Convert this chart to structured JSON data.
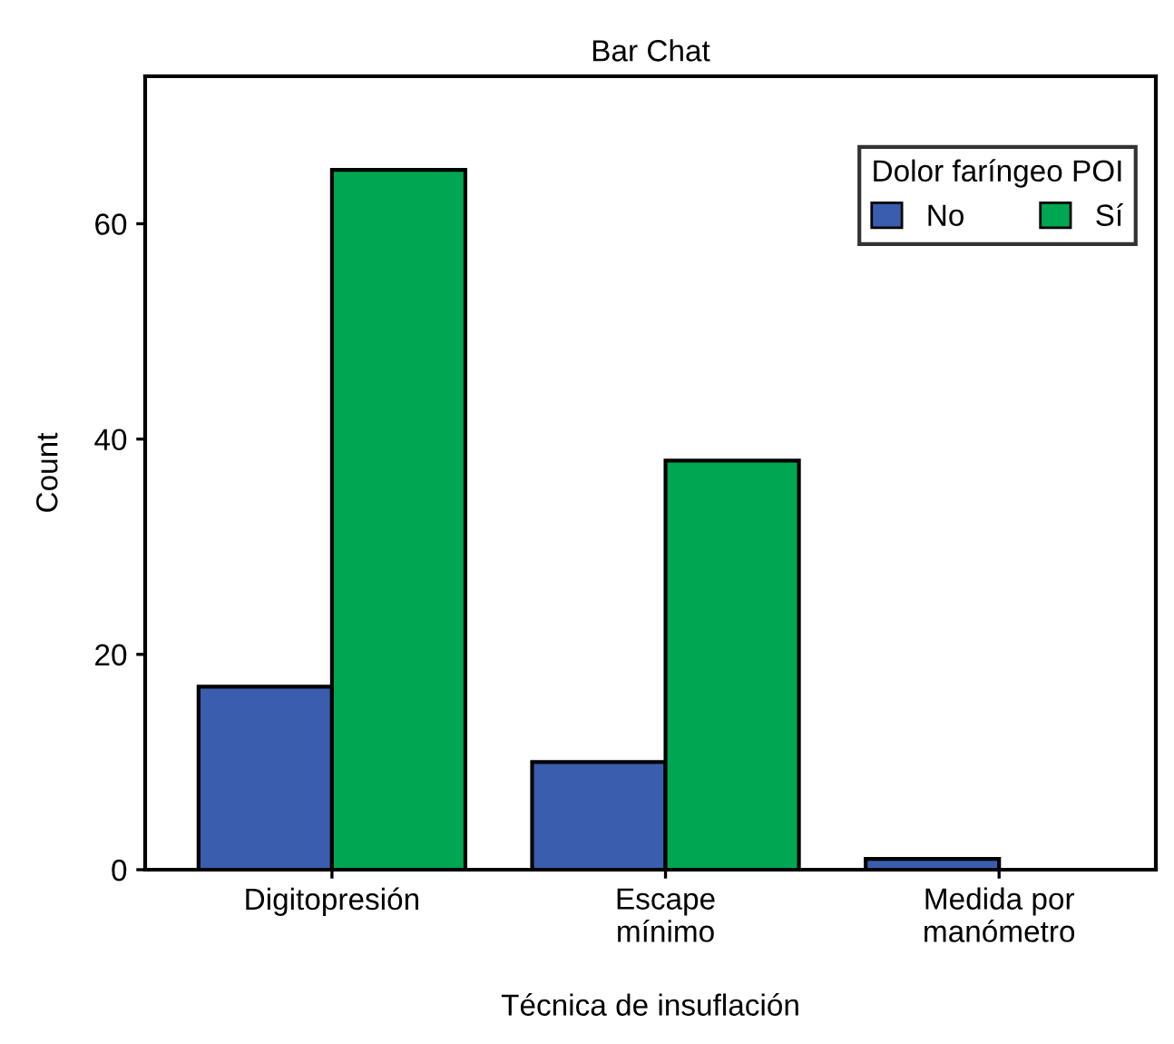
{
  "chart_data": {
    "type": "bar",
    "title": "Bar Chat",
    "xlabel": "Técnica de insuflación",
    "ylabel": "Count",
    "categories": [
      "Digitopresión",
      "Escape\nmínimo",
      "Medida por\nmanómetro"
    ],
    "series": [
      {
        "name": "No",
        "color": "#3a5dae",
        "values": [
          17,
          10,
          1
        ]
      },
      {
        "name": "Sí",
        "color": "#00a651",
        "values": [
          65,
          38,
          0
        ]
      }
    ],
    "legend_title": "Dolor faríngeo POI",
    "legend": "top right",
    "grid": false,
    "ylim": [
      0,
      73.7
    ],
    "yticks": [
      0,
      20,
      40,
      60
    ]
  }
}
